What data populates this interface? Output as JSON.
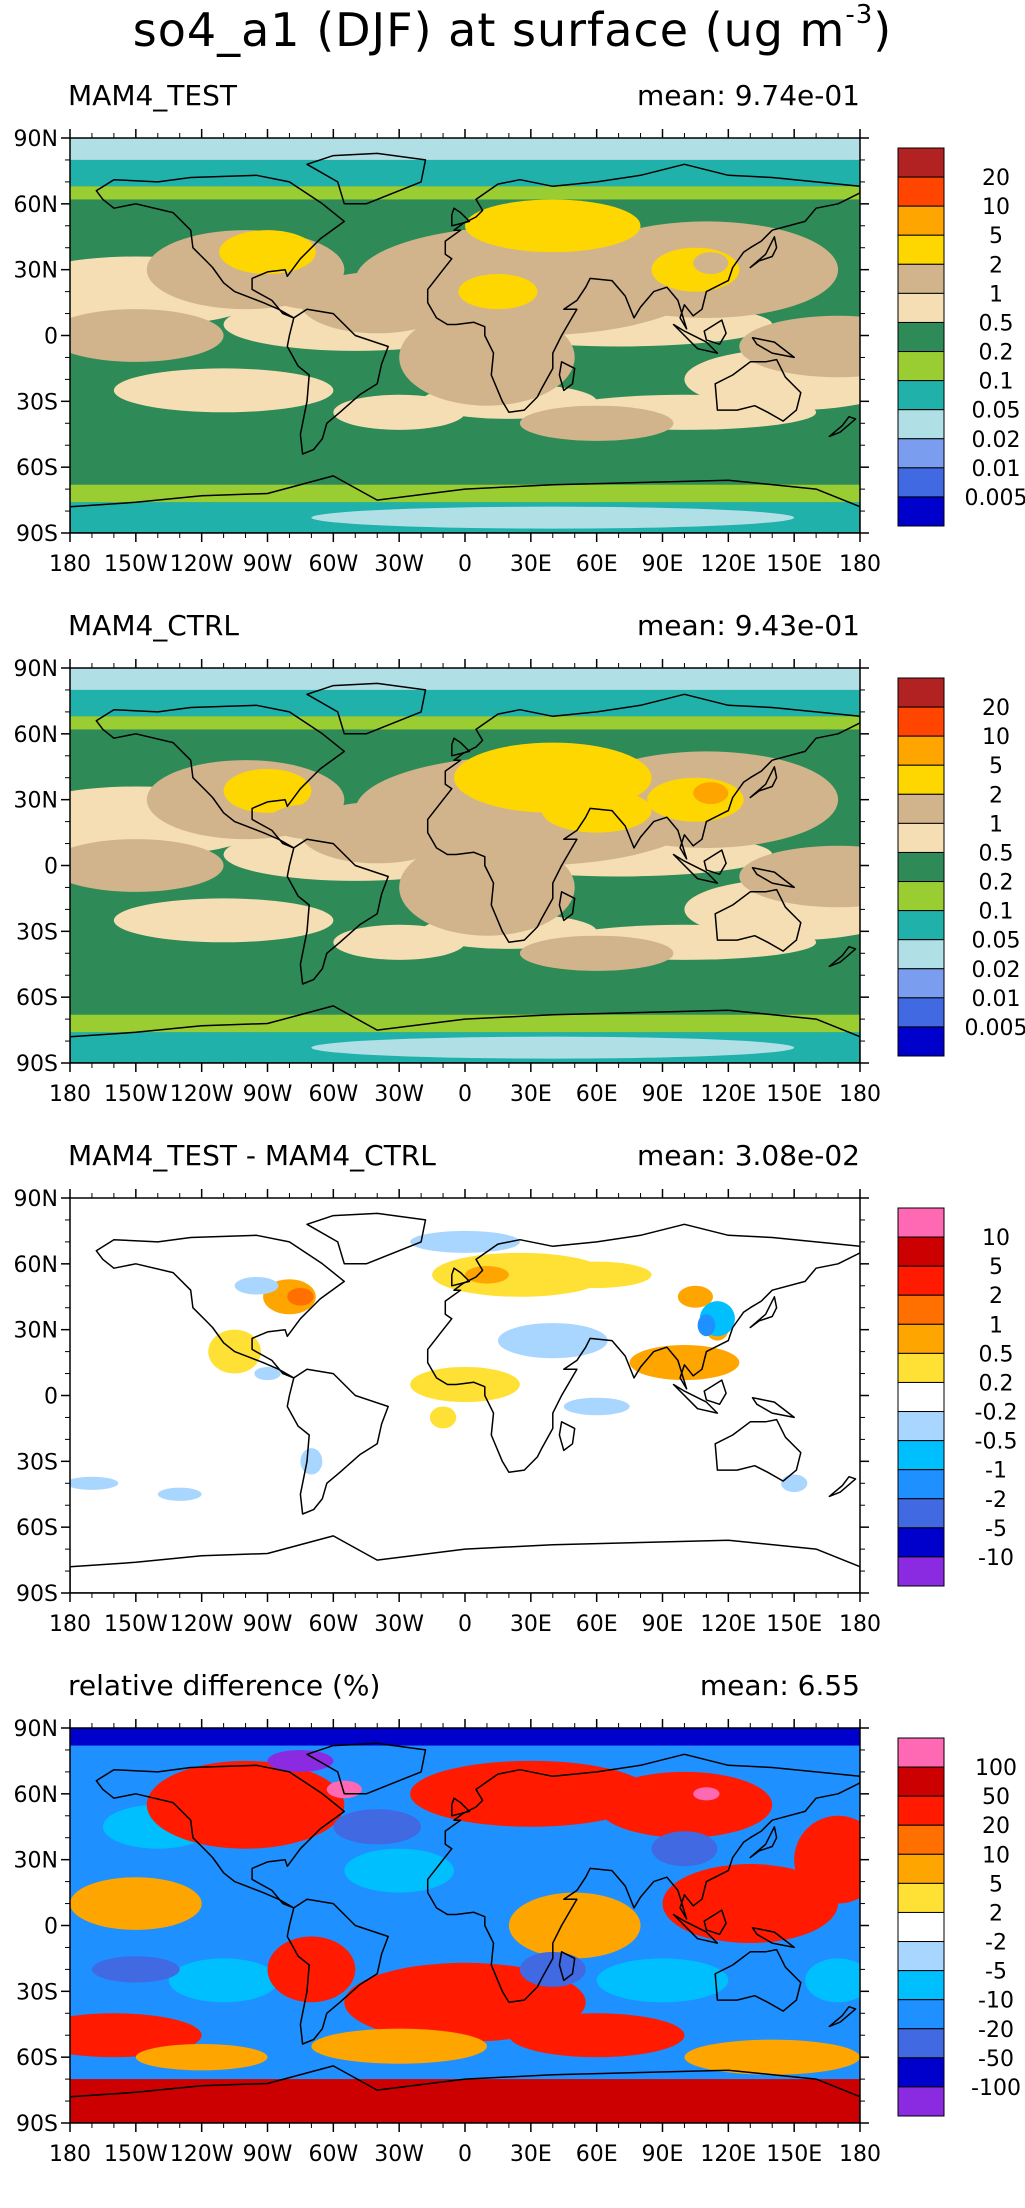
{
  "title": {
    "prefix": "so4_a1 (DJF) at surface (ug m",
    "exponent": "-3",
    "suffix": ")"
  },
  "axes": {
    "lon_labels": [
      "180",
      "150W",
      "120W",
      "90W",
      "60W",
      "30W",
      "0",
      "30E",
      "60E",
      "90E",
      "120E",
      "150E",
      "180"
    ],
    "lat_labels": [
      "90N",
      "60N",
      "30N",
      "0",
      "30S",
      "60S",
      "90S"
    ]
  },
  "chart_data": [
    {
      "type": "heatmap",
      "title": "MAM4_TEST",
      "mean_text": "mean: 9.74e-01",
      "colorbar": {
        "labels": [
          "20",
          "10",
          "5",
          "2",
          "1",
          "0.5",
          "0.2",
          "0.1",
          "0.05",
          "0.02",
          "0.01",
          "0.005"
        ],
        "colors": [
          "#b22222",
          "#ff4500",
          "#ffa500",
          "#ffd700",
          "#d2b48c",
          "#f5deb3",
          "#2e8b57",
          "#9acd32",
          "#20b2aa",
          "#b0e0e6",
          "#7b9df0",
          "#4169e1",
          "#0000cd"
        ]
      }
    },
    {
      "type": "heatmap",
      "title": "MAM4_CTRL",
      "mean_text": "mean: 9.43e-01",
      "colorbar": {
        "labels": [
          "20",
          "10",
          "5",
          "2",
          "1",
          "0.5",
          "0.2",
          "0.1",
          "0.05",
          "0.02",
          "0.01",
          "0.005"
        ],
        "colors": [
          "#b22222",
          "#ff4500",
          "#ffa500",
          "#ffd700",
          "#d2b48c",
          "#f5deb3",
          "#2e8b57",
          "#9acd32",
          "#20b2aa",
          "#b0e0e6",
          "#7b9df0",
          "#4169e1",
          "#0000cd"
        ]
      }
    },
    {
      "type": "heatmap",
      "title": "MAM4_TEST - MAM4_CTRL",
      "mean_text": "mean: 3.08e-02",
      "colorbar": {
        "labels": [
          "10",
          "5",
          "2",
          "1",
          "0.5",
          "0.2",
          "-0.2",
          "-0.5",
          "-1",
          "-2",
          "-5",
          "-10"
        ],
        "colors": [
          "#ff69b4",
          "#cc0000",
          "#ff1a00",
          "#ff7000",
          "#ffa500",
          "#ffe035",
          "#ffffff",
          "#a9d6ff",
          "#00bfff",
          "#1e90ff",
          "#4169e1",
          "#0000cd",
          "#8a2be2"
        ]
      }
    },
    {
      "type": "heatmap",
      "title": "relative difference (%)",
      "mean_text": "mean:   6.55",
      "colorbar": {
        "labels": [
          "100",
          "50",
          "20",
          "10",
          "5",
          "2",
          "-2",
          "-5",
          "-10",
          "-20",
          "-50",
          "-100"
        ],
        "colors": [
          "#ff69b4",
          "#cc0000",
          "#ff1a00",
          "#ff7000",
          "#ffa500",
          "#ffe035",
          "#ffffff",
          "#a9d6ff",
          "#00bfff",
          "#1e90ff",
          "#4169e1",
          "#0000cd",
          "#8a2be2"
        ]
      }
    }
  ]
}
